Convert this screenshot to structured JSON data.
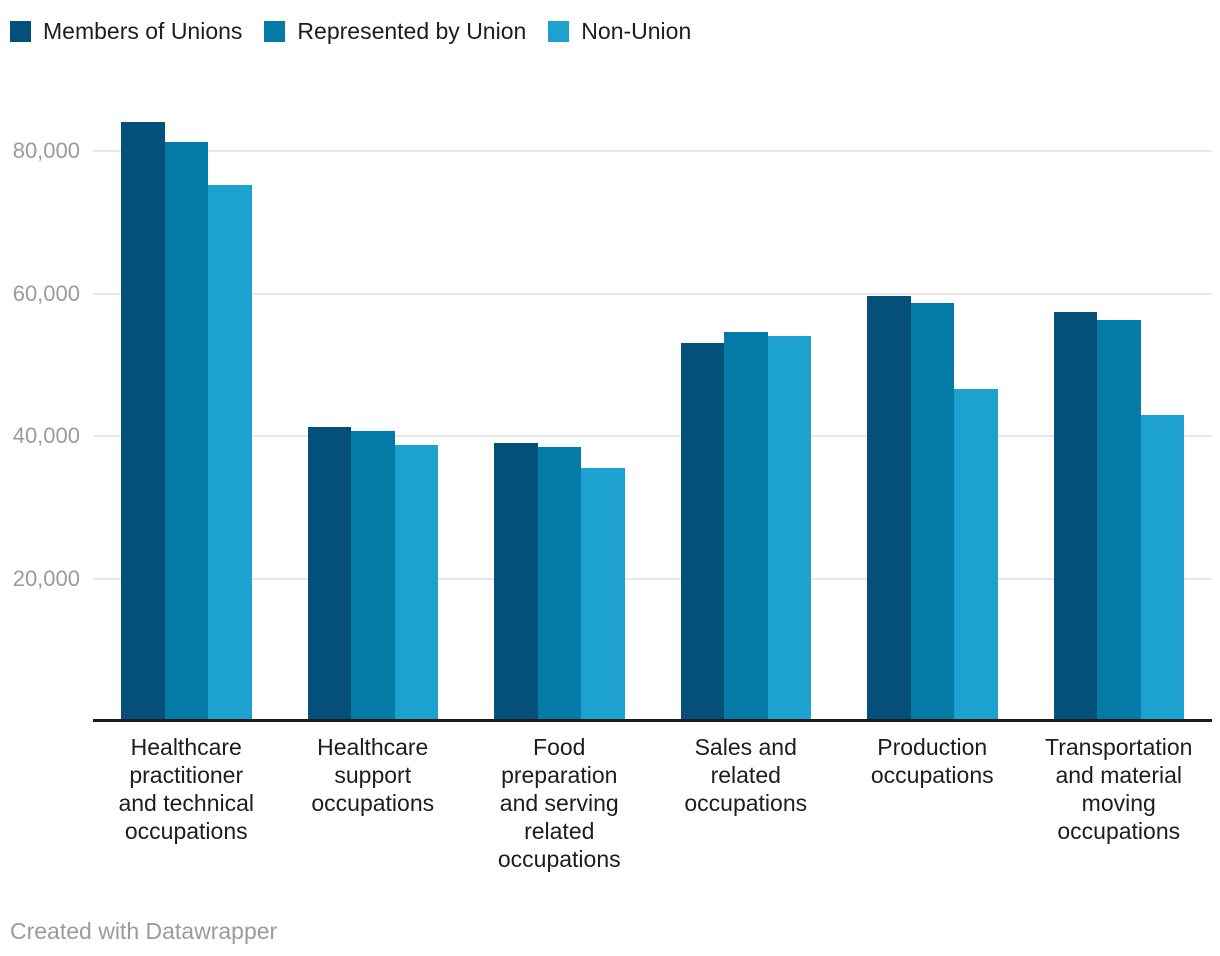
{
  "legend": {
    "items": [
      {
        "label": "Members of Unions",
        "color": "#05507a"
      },
      {
        "label": "Represented by Union",
        "color": "#047ba6"
      },
      {
        "label": "Non-Union",
        "color": "#1da2cf"
      }
    ]
  },
  "chart_data": {
    "type": "bar",
    "title": "",
    "categories": [
      "Healthcare practitioner and technical occupations",
      "Healthcare support occupations",
      "Food preparation and serving related occupations",
      "Sales and related occupations",
      "Production occupations",
      "Transportation and material moving occupations"
    ],
    "categories_display": [
      "Healthcare\npractitioner\nand technical\noccupations",
      "Healthcare\nsupport\noccupations",
      "Food\npreparation\nand serving\nrelated\noccupations",
      "Sales and\nrelated\noccupations",
      "Production\noccupations",
      "Transportation\nand material\nmoving\noccupations"
    ],
    "series": [
      {
        "name": "Members of Unions",
        "color": "#05507a",
        "values": [
          84100,
          41200,
          39000,
          53000,
          59700,
          57400
        ]
      },
      {
        "name": "Represented by Union",
        "color": "#047ba6",
        "values": [
          81200,
          40700,
          38500,
          54600,
          58600,
          56300
        ]
      },
      {
        "name": "Non-Union",
        "color": "#1da2cf",
        "values": [
          75200,
          38800,
          35500,
          54100,
          46600,
          43000
        ]
      }
    ],
    "xlabel": "",
    "ylabel": "",
    "ylim": [
      0,
      87000
    ],
    "grid": true,
    "legend_position": "top-left",
    "yaxis": {
      "tick_labels": [
        "80,000",
        "60,000",
        "40,000",
        "20,000"
      ],
      "tick_values": [
        80000,
        60000,
        40000,
        20000
      ]
    }
  },
  "colors": {
    "grid": "#e8e8e8",
    "axis_line": "#1a1a1a",
    "tick_label": "#9b9b9b",
    "category_label": "#1d1d1d",
    "background": "#ffffff"
  },
  "footer": {
    "credit": "Created with Datawrapper"
  }
}
